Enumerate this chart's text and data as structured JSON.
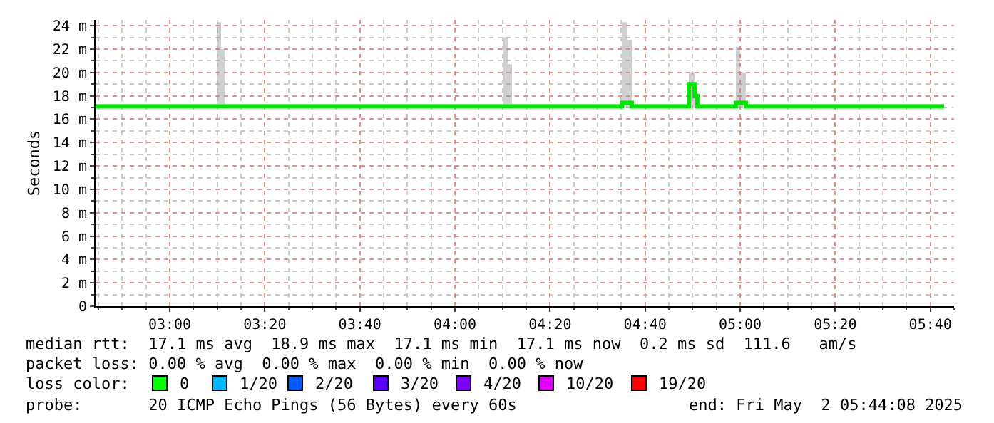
{
  "chart_data": {
    "type": "step",
    "ylabel": "Seconds",
    "x": [
      2.74,
      3.155,
      3.165,
      3.18,
      3.195,
      4.165,
      4.17,
      4.185,
      4.2,
      4.58,
      4.585,
      4.605,
      4.62,
      4.815,
      4.82,
      4.84,
      4.85,
      4.98,
      4.985,
      5.0,
      5.02,
      5.715
    ],
    "series": [
      {
        "color": "#00e600",
        "values": [
          17.1,
          17.1,
          17.1,
          17.1,
          17.1,
          17.1,
          17.1,
          17.1,
          17.1,
          17.1,
          17.4,
          17.4,
          17.1,
          17.1,
          19.0,
          18.0,
          17.1,
          17.1,
          17.4,
          17.4,
          17.1,
          17.1
        ],
        "lower": [
          17.0,
          17.0,
          17.0,
          17.0,
          17.0,
          17.0,
          17.0,
          17.0,
          17.0,
          17.0,
          17.0,
          17.0,
          17.0,
          17.0,
          17.0,
          17.0,
          17.0,
          17.0,
          17.0,
          17.0,
          17.0,
          17.0
        ],
        "upper": [
          17.3,
          17.3,
          24.3,
          22.0,
          17.3,
          17.3,
          23.0,
          20.7,
          17.3,
          17.3,
          24.3,
          22.8,
          17.3,
          17.3,
          20.0,
          18.8,
          17.3,
          17.3,
          22.2,
          20.0,
          17.3,
          17.3
        ]
      }
    ],
    "xlim": [
      2.74,
      5.75
    ],
    "xticks": [
      {
        "value": 3,
        "label": "03:00"
      },
      {
        "value": 3.3333,
        "label": "03:20"
      },
      {
        "value": 3.6667,
        "label": "03:40"
      },
      {
        "value": 4,
        "label": "04:00"
      },
      {
        "value": 4.3333,
        "label": "04:20"
      },
      {
        "value": 4.6667,
        "label": "04:40"
      },
      {
        "value": 5,
        "label": "05:00"
      },
      {
        "value": 5.3333,
        "label": "05:20"
      },
      {
        "value": 5.6667,
        "label": "05:40"
      }
    ],
    "ylim": [
      0,
      24.5
    ],
    "yticks": [
      0,
      {
        "value": 2,
        "label": "2 m"
      },
      {
        "value": 4,
        "label": "4 m"
      },
      {
        "value": 6,
        "label": "6 m"
      },
      {
        "value": 8,
        "label": "8 m"
      },
      {
        "value": 10,
        "label": "10 m"
      },
      {
        "value": 12,
        "label": "12 m"
      },
      {
        "value": 14,
        "label": "14 m"
      },
      {
        "value": 16,
        "label": "16 m"
      },
      {
        "value": 18,
        "label": "18 m"
      },
      {
        "value": 20,
        "label": "20 m"
      },
      {
        "value": 22,
        "label": "22 m"
      },
      {
        "value": 24,
        "label": "24 m"
      }
    ],
    "grid": true,
    "annotations": [
      "median rtt:  17.1 ms avg  18.9 ms max  17.1 ms min  17.1 ms now  0.2 ms sd  111.6   am/s",
      "packet loss: 0.00 % avg  0.00 % max  0.00 % min  0.00 % now",
      "loss color:",
      "0",
      "1/20",
      "2/20",
      "3/20",
      "4/20",
      "10/20",
      "19/20",
      "probe:       20 ICMP Echo Pings (56 Bytes) every 60s",
      "end: Fri May  2 05:44:08 2025"
    ]
  }
}
